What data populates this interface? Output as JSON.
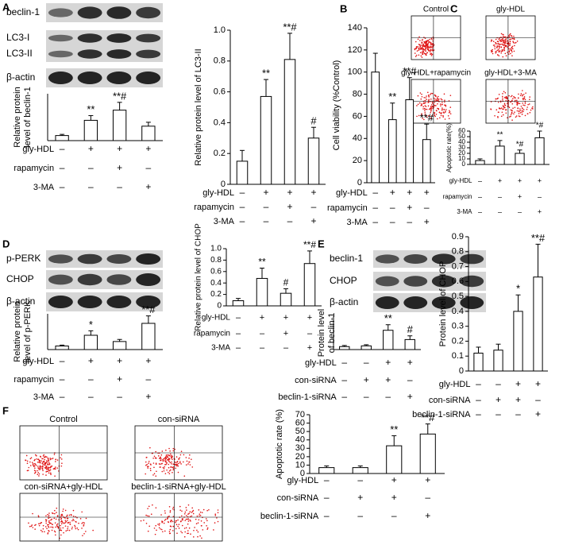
{
  "panels": [
    {
      "label": "A",
      "blots": [
        "beclin-1",
        "LC3-I",
        "LC3-II",
        "β-actin"
      ]
    },
    {
      "label": "B"
    },
    {
      "label": "C",
      "flow_plots": [
        "Control",
        "gly-HDL",
        "gly-HDL+rapamycin",
        "gly-HDL+3-MA"
      ]
    },
    {
      "label": "D",
      "blots": [
        "p-PERK",
        "CHOP",
        "β-actin"
      ]
    },
    {
      "label": "E",
      "blots": [
        "beclin-1",
        "CHOP",
        "β-actin"
      ]
    },
    {
      "label": "F",
      "flow_plots": [
        "Control",
        "con-siRNA",
        "con-siRNA+gly-HDL",
        "beclin-1-siRNA+gly-HDL"
      ]
    }
  ],
  "chart_data": [
    {
      "type": "bar",
      "ylabel": [
        "Relative protein",
        "level of beclin-1"
      ],
      "ylim": [
        0,
        1.2
      ],
      "values": [
        0.13,
        0.52,
        0.78,
        0.37
      ],
      "errors": [
        0.03,
        0.12,
        0.2,
        0.1
      ],
      "annotations": [
        null,
        "**",
        "**#",
        null
      ],
      "conditions": [
        {
          "name": "gly-HDL",
          "signs": [
            "–",
            "+",
            "+",
            "+"
          ]
        },
        {
          "name": "rapamycin",
          "signs": [
            "–",
            "–",
            "+",
            "–"
          ]
        },
        {
          "name": "3-MA",
          "signs": [
            "–",
            "–",
            "–",
            "+"
          ]
        }
      ]
    },
    {
      "type": "bar",
      "ylabel": [
        "Relative protein level of LC3-II"
      ],
      "ylim": [
        0,
        1
      ],
      "yticks": [
        0,
        0.2,
        0.4,
        0.6,
        0.8,
        {
          "value": 1,
          "label": "1.0"
        }
      ],
      "values": [
        0.15,
        0.57,
        0.81,
        0.3
      ],
      "errors": [
        0.07,
        0.11,
        0.17,
        0.07
      ],
      "annotations": [
        null,
        "**",
        "**#",
        "#"
      ],
      "conditions": [
        {
          "name": "gly-HDL",
          "signs": [
            "–",
            "+",
            "+",
            "+"
          ]
        },
        {
          "name": "rapamycin",
          "signs": [
            "–",
            "–",
            "+",
            "–"
          ]
        },
        {
          "name": "3-MA",
          "signs": [
            "–",
            "–",
            "–",
            "+"
          ]
        }
      ]
    },
    {
      "type": "bar",
      "ylabel": [
        "Cell viability (%Control)"
      ],
      "ylim": [
        0,
        140
      ],
      "yticks": [
        0,
        20,
        40,
        60,
        80,
        100,
        120,
        140
      ],
      "values": [
        100,
        57,
        75,
        39
      ],
      "errors": [
        17,
        15,
        20,
        14
      ],
      "annotations": [
        null,
        "**",
        "**#",
        "**#"
      ],
      "conditions": [
        {
          "name": "gly-HDL",
          "signs": [
            "–",
            "+",
            "+",
            "+"
          ]
        },
        {
          "name": "rapamycin",
          "signs": [
            "–",
            "–",
            "+",
            "–"
          ]
        },
        {
          "name": "3-MA",
          "signs": [
            "–",
            "–",
            "–",
            "+"
          ]
        }
      ]
    },
    {
      "type": "bar",
      "ylabel": [
        "Apoptotic rate(%)"
      ],
      "ylim": [
        0,
        60
      ],
      "yticks": [
        0,
        10,
        20,
        30,
        40,
        50,
        60
      ],
      "values": [
        7,
        33,
        20,
        48
      ],
      "errors": [
        3,
        10,
        6,
        12
      ],
      "annotations": [
        null,
        "**",
        "*#",
        "*#"
      ],
      "conditions": [
        {
          "name": "gly-HDL",
          "signs": [
            "–",
            "+",
            "+",
            "+"
          ]
        },
        {
          "name": "rapamycin",
          "signs": [
            "–",
            "–",
            "+",
            "–"
          ]
        },
        {
          "name": "3-MA",
          "signs": [
            "–",
            "–",
            "–",
            "+"
          ]
        }
      ]
    },
    {
      "type": "bar",
      "ylabel": [
        "Relative protein",
        "level of p-PERK"
      ],
      "ylim": [
        0,
        1.2
      ],
      "values": [
        0.12,
        0.48,
        0.27,
        0.88
      ],
      "errors": [
        0.03,
        0.15,
        0.07,
        0.25
      ],
      "annotations": [
        null,
        "*",
        null,
        "**#"
      ],
      "conditions": [
        {
          "name": "gly-HDL",
          "signs": [
            "–",
            "+",
            "+",
            "+"
          ]
        },
        {
          "name": "rapamycin",
          "signs": [
            "–",
            "–",
            "+",
            "–"
          ]
        },
        {
          "name": "3-MA",
          "signs": [
            "–",
            "–",
            "–",
            "+"
          ]
        }
      ]
    },
    {
      "type": "bar",
      "ylabel": [
        "Relative protein level of CHOP"
      ],
      "ylim": [
        0,
        1
      ],
      "yticks": [
        0,
        0.2,
        0.4,
        0.6,
        0.8,
        {
          "value": 1,
          "label": "1.0"
        }
      ],
      "values": [
        0.09,
        0.48,
        0.22,
        0.74
      ],
      "errors": [
        0.04,
        0.18,
        0.08,
        0.22
      ],
      "annotations": [
        null,
        "**",
        "#",
        "**#"
      ],
      "conditions": [
        {
          "name": "gly-HDL",
          "signs": [
            "–",
            "+",
            "+",
            "+"
          ]
        },
        {
          "name": "rapamycin",
          "signs": [
            "–",
            "–",
            "+",
            "–"
          ]
        },
        {
          "name": "3-MA",
          "signs": [
            "–",
            "–",
            "–",
            "+"
          ]
        }
      ]
    },
    {
      "type": "bar",
      "ylabel": [
        "Protein level",
        "of beclin-1"
      ],
      "ylim": [
        0,
        0.9
      ],
      "values": [
        0.08,
        0.1,
        0.52,
        0.27
      ],
      "errors": [
        0.03,
        0.03,
        0.15,
        0.1
      ],
      "annotations": [
        null,
        null,
        "**",
        "#"
      ],
      "conditions": [
        {
          "name": "gly-HDL",
          "signs": [
            "–",
            "–",
            "+",
            "+"
          ]
        },
        {
          "name": "con-siRNA",
          "signs": [
            "–",
            "+",
            "+",
            "–"
          ]
        },
        {
          "name": "beclin-1-siRNA",
          "signs": [
            "–",
            "–",
            "–",
            "+"
          ]
        }
      ]
    },
    {
      "type": "bar",
      "ylabel": [
        "Protein level of CHOP"
      ],
      "ylim": [
        0,
        0.9
      ],
      "yticks": [
        0,
        0.1,
        0.2,
        0.3,
        0.4,
        0.5,
        0.6,
        0.7,
        0.8,
        0.9
      ],
      "values": [
        0.12,
        0.14,
        0.4,
        0.63
      ],
      "errors": [
        0.04,
        0.04,
        0.11,
        0.22
      ],
      "annotations": [
        null,
        null,
        "*",
        "**#"
      ],
      "conditions": [
        {
          "name": "gly-HDL",
          "signs": [
            "–",
            "–",
            "+",
            "+"
          ]
        },
        {
          "name": "con-siRNA",
          "signs": [
            "–",
            "+",
            "+",
            "–"
          ]
        },
        {
          "name": "beclin-1-siRNA",
          "signs": [
            "–",
            "–",
            "–",
            "+"
          ]
        }
      ]
    },
    {
      "type": "bar",
      "ylabel": [
        "Apoptotic rate (%)"
      ],
      "ylim": [
        0,
        70
      ],
      "yticks": [
        0,
        10,
        20,
        30,
        40,
        50,
        60,
        70
      ],
      "values": [
        7,
        7,
        33,
        47
      ],
      "errors": [
        2,
        2,
        12,
        12
      ],
      "annotations": [
        null,
        null,
        "**",
        "**#"
      ],
      "conditions": [
        {
          "name": "gly-HDL",
          "signs": [
            "–",
            "–",
            "+",
            "+"
          ]
        },
        {
          "name": "con-siRNA",
          "signs": [
            "–",
            "+",
            "+",
            "–"
          ]
        },
        {
          "name": "beclin-1-siRNA",
          "signs": [
            "–",
            "–",
            "–",
            "+"
          ]
        }
      ]
    }
  ]
}
